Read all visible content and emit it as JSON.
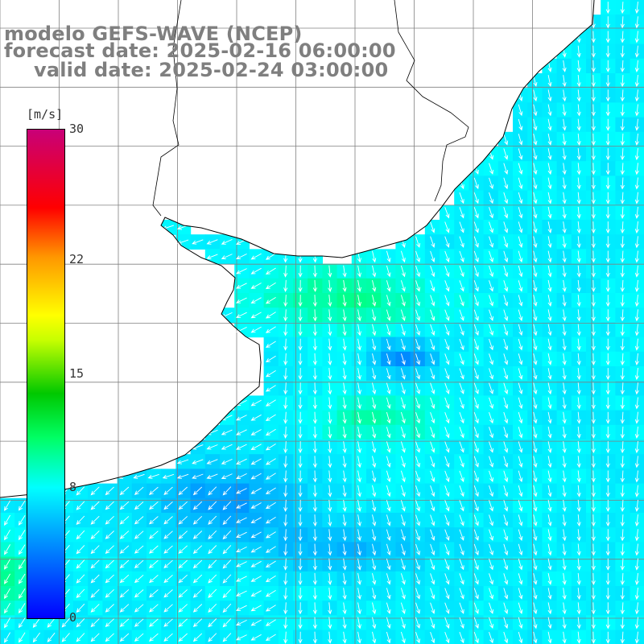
{
  "titles": {
    "line1": "modelo GEFS-WAVE (NCEP)",
    "line2": "forecast date: 2025-02-16 06:00:00",
    "line3": "valid date: 2025-02-24 03:00:00"
  },
  "colorbar": {
    "unit": "[m/s]",
    "ticks": [
      {
        "label": "30",
        "value": 30
      },
      {
        "label": "22",
        "value": 22
      },
      {
        "label": "15",
        "value": 15
      },
      {
        "label": "8",
        "value": 8
      },
      {
        "label": "0",
        "value": 0
      }
    ],
    "range": [
      0,
      30
    ],
    "colors": [
      "#0000ff",
      "#0096ff",
      "#00ffff",
      "#00ff64",
      "#00c800",
      "#c8ff00",
      "#ffff00",
      "#ff9600",
      "#ff0000",
      "#c80078"
    ]
  },
  "map": {
    "land_color": "#ffffff",
    "coast_color": "#000000",
    "grid_color": "#808080",
    "arrow_color": "#ffffff"
  }
}
